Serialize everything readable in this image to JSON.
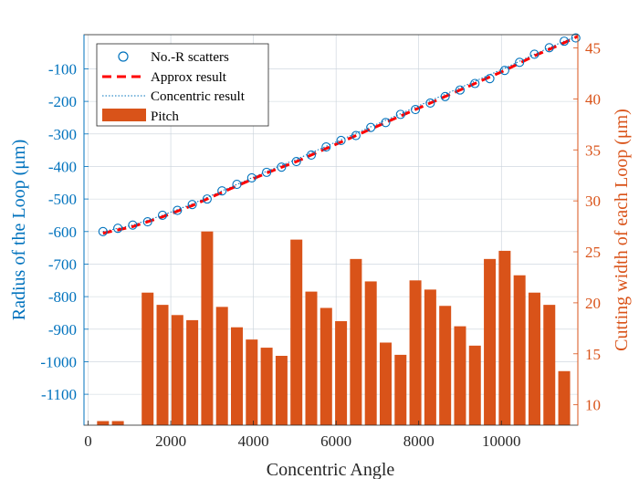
{
  "chart_data": {
    "type": "bar+line",
    "xlabel": "Concentric Angle",
    "ylabel_left": "Radius of the Loop (μm)",
    "ylabel_right": "Cutting width of each Loop (μm)",
    "xlim": [
      -100,
      11850
    ],
    "ylim_left": [
      -1195,
      5
    ],
    "ylim_right": [
      8,
      46.3
    ],
    "x_ticks": [
      0,
      2000,
      4000,
      6000,
      8000,
      10000
    ],
    "x_tick_labels": [
      "0",
      "2000",
      "4000",
      "6000",
      "8000",
      "10000"
    ],
    "y_left_ticks": [
      -100,
      -200,
      -300,
      -400,
      -500,
      -600,
      -700,
      -800,
      -900,
      -1000,
      -1100
    ],
    "y_left_tick_labels": [
      "-100",
      "-200",
      "-300",
      "-400",
      "-500",
      "-600",
      "-700",
      "-800",
      "-900",
      "-1000",
      "-1100"
    ],
    "y_right_ticks": [
      10,
      15,
      20,
      25,
      30,
      35,
      40,
      45
    ],
    "y_right_tick_labels": [
      "10",
      "15",
      "20",
      "25",
      "30",
      "35",
      "40",
      "45"
    ],
    "grid": true,
    "legend_position": "top-left",
    "legend": [
      "No.-R scatters",
      "Approx result",
      "Concentric result",
      "Pitch"
    ],
    "colors": {
      "left_axis": "#0072BD",
      "right_axis": "#D95319",
      "bars": "#D95319",
      "approx": "#FF0000",
      "concentric": "#0072BD",
      "scatter": "#0072BD",
      "grid": "#c8d2da"
    },
    "series": [
      {
        "name": "No.-R scatters",
        "type": "scatter",
        "axis": "left",
        "x": [
          360,
          720,
          1080,
          1440,
          1800,
          2160,
          2520,
          2880,
          3240,
          3600,
          3960,
          4320,
          4680,
          5040,
          5400,
          5760,
          6120,
          6480,
          6840,
          7200,
          7560,
          7920,
          8280,
          8640,
          9000,
          9360,
          9720,
          10080,
          10440,
          10800,
          11160,
          11520,
          11800
        ],
        "y": [
          -600,
          -590,
          -580,
          -570,
          -550,
          -535,
          -517,
          -500,
          -475,
          -455,
          -435,
          -418,
          -402,
          -385,
          -365,
          -340,
          -320,
          -305,
          -280,
          -265,
          -240,
          -225,
          -205,
          -185,
          -165,
          -145,
          -130,
          -105,
          -80,
          -55,
          -35,
          -15,
          -5
        ]
      },
      {
        "name": "Approx result",
        "type": "line",
        "axis": "left",
        "x": [
          360,
          1080,
          1440,
          1800,
          2520,
          2880,
          3600,
          4320,
          5040,
          5760,
          6480,
          7200,
          7920,
          8640,
          9360,
          10080,
          10800,
          11520,
          11850
        ],
        "y": [
          -605,
          -585,
          -570,
          -555,
          -520,
          -500,
          -460,
          -420,
          -385,
          -345,
          -305,
          -265,
          -225,
          -185,
          -145,
          -105,
          -60,
          -20,
          0
        ]
      },
      {
        "name": "Concentric result",
        "type": "line",
        "axis": "left",
        "x": [
          360,
          1080,
          1440,
          1800,
          2520,
          2880,
          3600,
          4320,
          5040,
          5760,
          6480,
          7200,
          7920,
          8640,
          9360,
          10080,
          10800,
          11520,
          11850
        ],
        "y": [
          -600,
          -580,
          -565,
          -550,
          -515,
          -495,
          -455,
          -415,
          -378,
          -338,
          -298,
          -258,
          -218,
          -178,
          -138,
          -98,
          -55,
          -15,
          0
        ]
      },
      {
        "name": "Pitch",
        "type": "bar",
        "axis": "right",
        "x": [
          360,
          720,
          1080,
          1440,
          1800,
          2160,
          2520,
          2880,
          3240,
          3600,
          3960,
          4320,
          4680,
          5040,
          5400,
          5760,
          6120,
          6480,
          6840,
          7200,
          7560,
          7920,
          8280,
          8640,
          9000,
          9360,
          9720,
          10080,
          10440,
          10800,
          11160,
          11520
        ],
        "values": [
          8.4,
          8.4,
          8.0,
          21.0,
          19.8,
          18.8,
          18.3,
          27.0,
          19.6,
          17.6,
          16.4,
          15.6,
          14.8,
          26.2,
          21.1,
          19.5,
          18.2,
          24.3,
          22.1,
          16.1,
          14.9,
          22.2,
          21.3,
          19.7,
          17.7,
          15.8,
          24.3,
          25.1,
          22.7,
          21.0,
          19.8,
          13.3
        ]
      }
    ]
  }
}
